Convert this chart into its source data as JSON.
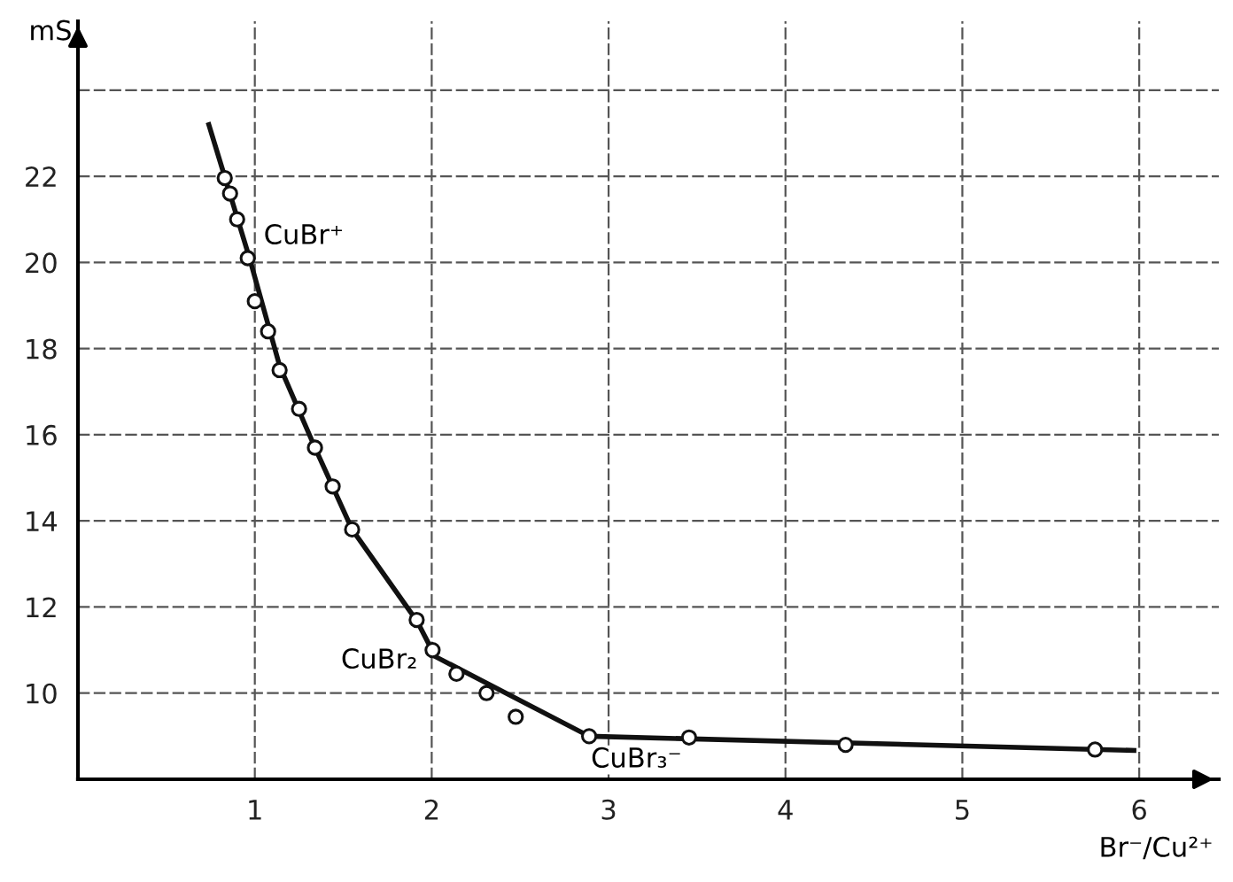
{
  "chart_data": {
    "type": "scatter",
    "ylabel": "mS",
    "xlabel": "Br⁻/Cu²⁺",
    "xlim": [
      0,
      6.45
    ],
    "ylim": [
      8,
      25.6
    ],
    "xticks": [
      1,
      2,
      3,
      4,
      5,
      6
    ],
    "yticks": [
      10,
      12,
      14,
      16,
      18,
      20,
      22,
      {
        "value": 24,
        "label": null
      }
    ],
    "grid": true,
    "marker": "circle",
    "series": [
      {
        "color": "#111111",
        "x": [
          0.83,
          0.86,
          0.9,
          0.96,
          1.0,
          1.075,
          1.14,
          1.25,
          1.34,
          1.44,
          1.55,
          1.915,
          2.005,
          2.14,
          2.31,
          2.475,
          2.89,
          3.455,
          4.34,
          5.75
        ],
        "values": [
          21.96,
          21.6,
          21.0,
          20.1,
          19.1,
          18.4,
          17.5,
          16.6,
          15.7,
          14.8,
          13.8,
          11.7,
          11.0,
          10.45,
          10.0,
          9.45,
          9.0,
          8.97,
          8.8,
          8.69
        ]
      },
      {
        "type": "line",
        "color": "#111111",
        "marker": "none",
        "x": [
          0.74,
          0.97,
          1.14,
          1.34,
          1.55,
          1.92,
          2.02,
          2.89,
          5.97
        ],
        "values": [
          23.2,
          20.1,
          17.6,
          15.7,
          13.8,
          11.65,
          10.85,
          9.0,
          8.67
        ]
      }
    ],
    "annotations": [
      "CuBr⁺",
      "CuBr₂",
      "CuBr₃⁻"
    ]
  }
}
